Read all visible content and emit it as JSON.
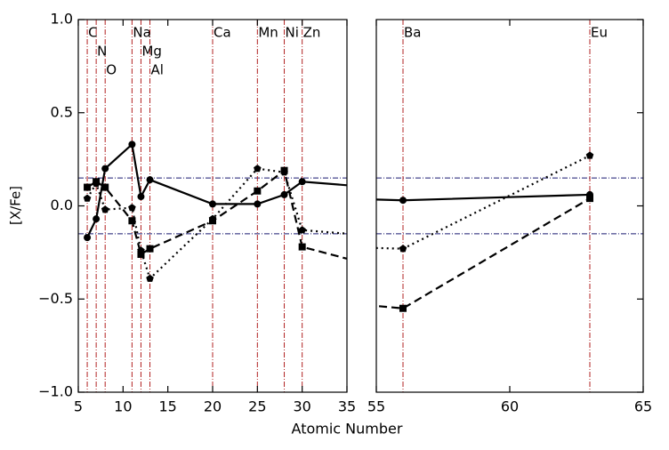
{
  "chart_data": {
    "type": "line",
    "x_label": "Atomic Number",
    "y_label": "[X/Fe]",
    "ylim": [
      -1,
      1
    ],
    "yticks": [
      {
        "value": -1,
        "label": "−1.0"
      },
      {
        "value": -0.5,
        "label": "−0.5"
      },
      {
        "value": 0,
        "label": "0.0"
      },
      0.5,
      {
        "value": 1,
        "label": "1.0"
      }
    ],
    "panels": [
      {
        "xlim": [
          5,
          35
        ],
        "xticks": [
          5,
          10,
          15,
          20,
          25,
          30,
          35
        ]
      },
      {
        "xlim": [
          55,
          65
        ],
        "xticks": [
          55,
          60,
          65
        ]
      }
    ],
    "x": [
      6,
      7,
      8,
      11,
      12,
      13,
      20,
      25,
      28,
      30,
      56,
      63
    ],
    "series": [
      {
        "color": "#000000",
        "style": "solid",
        "marker": "circle",
        "values": [
          -0.17,
          -0.07,
          0.2,
          0.33,
          0.05,
          0.14,
          0.01,
          0.01,
          0.06,
          0.13,
          0.03,
          0.06
        ]
      },
      {
        "color": "#000000",
        "style": "dashed",
        "marker": "square",
        "values": [
          0.1,
          0.13,
          0.1,
          -0.08,
          -0.26,
          -0.23,
          -0.08,
          0.08,
          0.19,
          -0.22,
          -0.55,
          0.04
        ]
      },
      {
        "color": "#000000",
        "style": "dotted",
        "marker": "pentagon",
        "values": [
          0.04,
          0.12,
          -0.02,
          -0.01,
          -0.24,
          -0.39,
          -0.07,
          0.2,
          0.18,
          -0.13,
          -0.23,
          0.27
        ]
      }
    ],
    "element_lines": {
      "color": "#b22222",
      "z": [
        6,
        7,
        8,
        11,
        12,
        13,
        20,
        25,
        28,
        30,
        56,
        63
      ],
      "labels": [
        "C",
        "N",
        "O",
        "Na",
        "Mg",
        "Al",
        "Ca",
        "Mn",
        "Ni",
        "Zn",
        "Ba",
        "Eu"
      ]
    },
    "hlines": {
      "color": "#191970",
      "values": [
        0.15,
        -0.15
      ]
    }
  }
}
